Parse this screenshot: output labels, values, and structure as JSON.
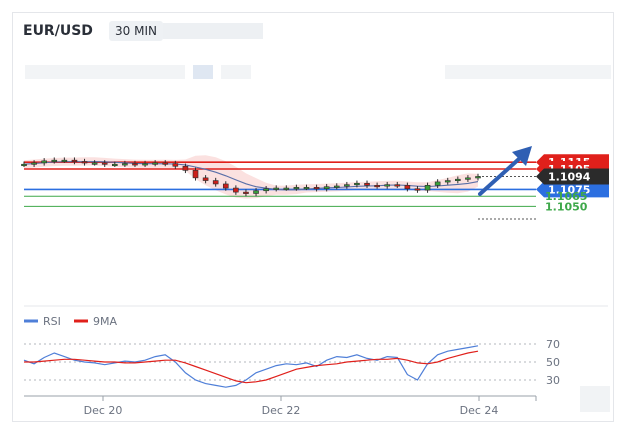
{
  "header": {
    "pair": "EUR/USD",
    "timeframe": "30 MIN"
  },
  "chart_data": [
    {
      "type": "line",
      "title": "",
      "x_ticks": [
        "Dec 20",
        "Dec 22",
        "Dec 24"
      ],
      "current_price": "1.1094",
      "levels": [
        {
          "label": "1.1115",
          "value": 1.1115,
          "kind": "resistance",
          "color": "#e0201b"
        },
        {
          "label": "1.1105",
          "value": 1.1105,
          "kind": "resistance",
          "color": "#e0201b"
        },
        {
          "label": "1.1075",
          "value": 1.1075,
          "kind": "support",
          "color": "#2c6fe0"
        },
        {
          "label": "1.1065",
          "value": 1.1065,
          "kind": "target",
          "color": "#3ea84a"
        },
        {
          "label": "1.1050",
          "value": 1.105,
          "kind": "target",
          "color": "#3ea84a"
        }
      ],
      "forecast": "up",
      "series": [
        {
          "name": "",
          "kind": "price",
          "color": "#cc1f1a",
          "values": [
            1.1112,
            1.1114,
            1.1117,
            1.1118,
            1.1118,
            1.1116,
            1.1114,
            1.1114,
            1.1112,
            1.1112,
            1.1113,
            1.1112,
            1.1113,
            1.1114,
            1.1113,
            1.1109,
            1.1103,
            1.1092,
            1.1088,
            1.1083,
            1.1077,
            1.1071,
            1.1069,
            1.1073,
            1.1076,
            1.1077,
            1.1077,
            1.1078,
            1.1078,
            1.1076,
            1.1079,
            1.108,
            1.1082,
            1.1084,
            1.1081,
            1.108,
            1.1082,
            1.1081,
            1.1076,
            1.1074,
            1.1081,
            1.1086,
            1.1088,
            1.109,
            1.1092,
            1.1094
          ]
        }
      ]
    },
    {
      "type": "line",
      "legend": [
        "RSI",
        "9MA"
      ],
      "yticks": [
        30,
        50,
        70
      ],
      "ylim": [
        10,
        80
      ],
      "series": [
        {
          "name": "RSI",
          "color": "#4f7fd8",
          "values": [
            52,
            48,
            55,
            60,
            56,
            52,
            50,
            49,
            47,
            49,
            51,
            50,
            52,
            56,
            58,
            50,
            38,
            30,
            26,
            24,
            22,
            24,
            30,
            38,
            42,
            46,
            48,
            47,
            49,
            45,
            52,
            56,
            55,
            58,
            54,
            52,
            56,
            55,
            36,
            30,
            48,
            58,
            62,
            64,
            66,
            68
          ]
        },
        {
          "name": "9MA",
          "color": "#e0201b",
          "values": [
            50,
            50,
            51,
            52,
            53,
            53,
            52,
            51,
            50,
            50,
            49,
            49,
            50,
            51,
            52,
            52,
            49,
            45,
            41,
            37,
            33,
            29,
            27,
            28,
            30,
            34,
            38,
            42,
            44,
            46,
            47,
            48,
            50,
            51,
            52,
            53,
            53,
            54,
            52,
            49,
            48,
            50,
            54,
            57,
            60,
            62
          ]
        }
      ]
    }
  ]
}
